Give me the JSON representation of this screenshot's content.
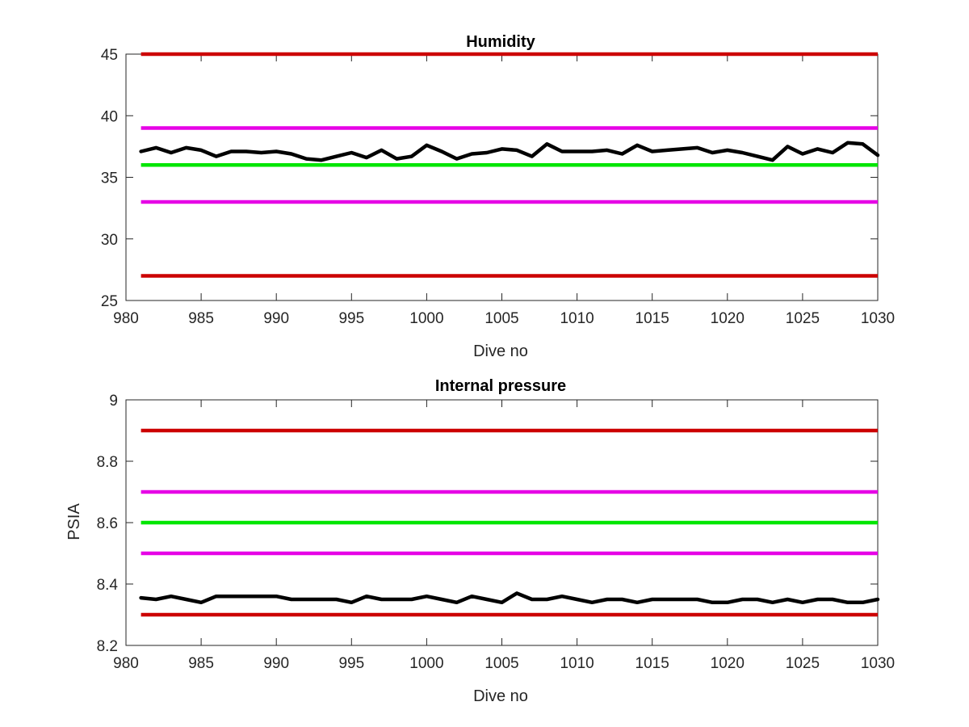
{
  "chart_data": [
    {
      "type": "line",
      "title": "Humidity",
      "xlabel": "Dive no",
      "ylabel": "",
      "xlim": [
        980,
        1030
      ],
      "ylim": [
        25,
        45
      ],
      "xticks": [
        980,
        985,
        990,
        995,
        1000,
        1005,
        1010,
        1015,
        1020,
        1025,
        1030
      ],
      "yticks": [
        25,
        30,
        35,
        40,
        45
      ],
      "grid": false,
      "thresholds": [
        {
          "value": 45,
          "color": "#cc0000"
        },
        {
          "value": 39,
          "color": "#e600e6"
        },
        {
          "value": 36,
          "color": "#00e600"
        },
        {
          "value": 33,
          "color": "#e600e6"
        },
        {
          "value": 27,
          "color": "#cc0000"
        }
      ],
      "series": [
        {
          "color": "#000000",
          "x": [
            981,
            982,
            983,
            984,
            985,
            986,
            987,
            988,
            989,
            990,
            991,
            992,
            993,
            994,
            995,
            996,
            997,
            998,
            999,
            1000,
            1001,
            1002,
            1003,
            1004,
            1005,
            1006,
            1007,
            1008,
            1009,
            1010,
            1011,
            1012,
            1013,
            1014,
            1015,
            1016,
            1017,
            1018,
            1019,
            1020,
            1021,
            1022,
            1023,
            1024,
            1025,
            1026,
            1027,
            1028,
            1029,
            1030
          ],
          "values": [
            37.1,
            37.4,
            37.0,
            37.4,
            37.2,
            36.7,
            37.1,
            37.1,
            37.0,
            37.1,
            36.9,
            36.5,
            36.4,
            36.7,
            37.0,
            36.6,
            37.2,
            36.5,
            36.7,
            37.6,
            37.1,
            36.5,
            36.9,
            37.0,
            37.3,
            37.2,
            36.7,
            37.7,
            37.1,
            37.1,
            37.1,
            37.2,
            36.9,
            37.6,
            37.1,
            37.2,
            37.3,
            37.4,
            37.0,
            37.2,
            37.0,
            36.7,
            36.4,
            37.5,
            36.9,
            37.3,
            37.0,
            37.8,
            37.7,
            36.8
          ]
        }
      ]
    },
    {
      "type": "line",
      "title": "Internal pressure",
      "xlabel": "Dive no",
      "ylabel": "PSIA",
      "xlim": [
        980,
        1030
      ],
      "ylim": [
        8.2,
        9
      ],
      "xticks": [
        980,
        985,
        990,
        995,
        1000,
        1005,
        1010,
        1015,
        1020,
        1025,
        1030
      ],
      "yticks": [
        8.2,
        8.4,
        8.6,
        8.8,
        9
      ],
      "grid": false,
      "thresholds": [
        {
          "value": 8.9,
          "color": "#cc0000"
        },
        {
          "value": 8.7,
          "color": "#e600e6"
        },
        {
          "value": 8.6,
          "color": "#00e600"
        },
        {
          "value": 8.5,
          "color": "#e600e6"
        },
        {
          "value": 8.3,
          "color": "#cc0000"
        }
      ],
      "series": [
        {
          "color": "#000000",
          "x": [
            981,
            982,
            983,
            984,
            985,
            986,
            987,
            988,
            989,
            990,
            991,
            992,
            993,
            994,
            995,
            996,
            997,
            998,
            999,
            1000,
            1001,
            1002,
            1003,
            1004,
            1005,
            1006,
            1007,
            1008,
            1009,
            1010,
            1011,
            1012,
            1013,
            1014,
            1015,
            1016,
            1017,
            1018,
            1019,
            1020,
            1021,
            1022,
            1023,
            1024,
            1025,
            1026,
            1027,
            1028,
            1029,
            1030
          ],
          "values": [
            8.355,
            8.35,
            8.36,
            8.35,
            8.34,
            8.36,
            8.36,
            8.36,
            8.36,
            8.36,
            8.35,
            8.35,
            8.35,
            8.35,
            8.34,
            8.36,
            8.35,
            8.35,
            8.35,
            8.36,
            8.35,
            8.34,
            8.36,
            8.35,
            8.34,
            8.37,
            8.35,
            8.35,
            8.36,
            8.35,
            8.34,
            8.35,
            8.35,
            8.34,
            8.35,
            8.35,
            8.35,
            8.35,
            8.34,
            8.34,
            8.35,
            8.35,
            8.34,
            8.35,
            8.34,
            8.35,
            8.35,
            8.34,
            8.34,
            8.35
          ]
        }
      ]
    }
  ]
}
